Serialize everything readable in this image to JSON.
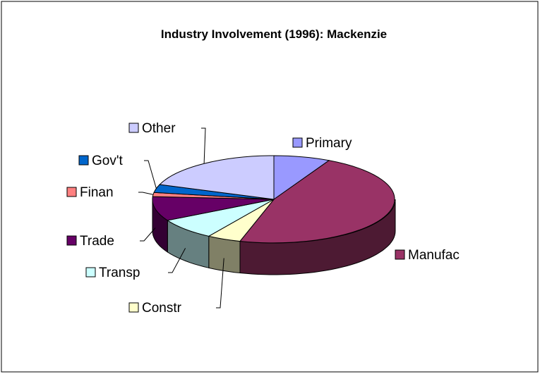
{
  "chart_data": {
    "type": "pie3d",
    "title": "Industry Involvement (1996): Mackenzie",
    "categories": [
      "Primary",
      "Manufac",
      "Constr",
      "Transp",
      "Trade",
      "Finan",
      "Gov't",
      "Other"
    ],
    "values": [
      7.5,
      47,
      4.5,
      8,
      9,
      1.5,
      3,
      19.5
    ],
    "colors": [
      "#9999ff",
      "#993366",
      "#ffffcc",
      "#ccffff",
      "#660066",
      "#ff8080",
      "#0066cc",
      "#ccccff"
    ]
  }
}
